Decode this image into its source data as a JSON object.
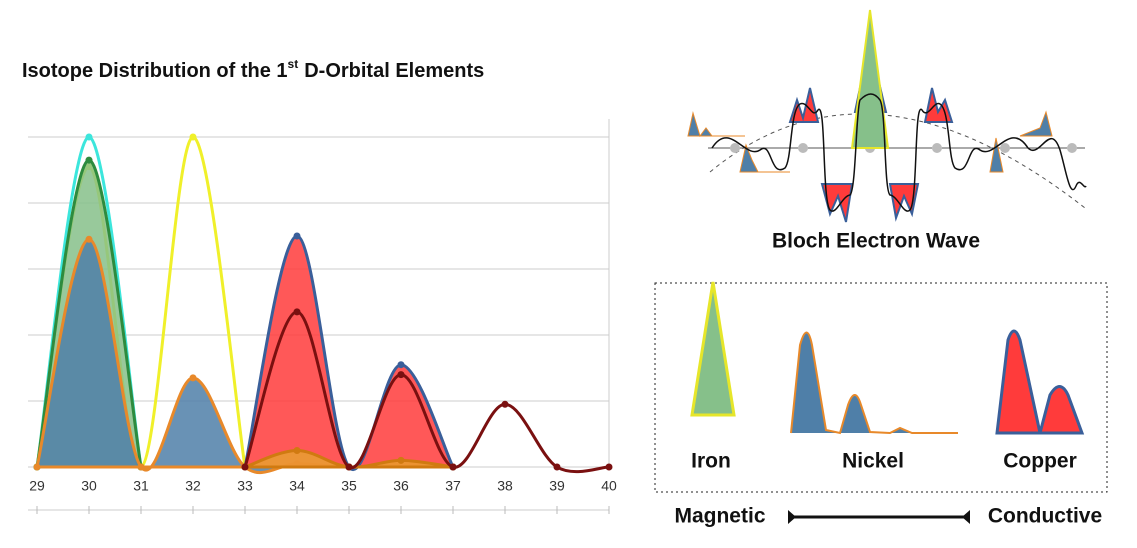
{
  "chart_data": {
    "type": "area",
    "title": "Isotope Distribution of the 1",
    "title_sup": "st",
    "title_rest": "D-Orbital Elements",
    "x": [
      29,
      30,
      31,
      32,
      33,
      34,
      35,
      36,
      37,
      38,
      39,
      40
    ],
    "xlim": [
      29,
      40
    ],
    "xticks": [
      29,
      30,
      31,
      32,
      33,
      34,
      35,
      36,
      37,
      38,
      39,
      40
    ],
    "ylim": [
      0,
      100
    ],
    "yticks": [
      0,
      20,
      40,
      60,
      80,
      100
    ],
    "grid": true,
    "series": [
      {
        "kind": "line",
        "color": "#3ce6dc",
        "values": [
          0,
          100,
          0,
          null,
          null,
          null,
          null,
          null,
          null,
          null,
          null,
          null
        ]
      },
      {
        "kind": "line",
        "color": "#f0f02a",
        "values": [
          0,
          91,
          0,
          100,
          0,
          null,
          null,
          null,
          null,
          null,
          null,
          null
        ]
      },
      {
        "kind": "area",
        "color": "#86c08a",
        "outline": "#2e8b3e",
        "values": [
          0,
          93,
          0,
          null,
          null,
          null,
          null,
          null,
          null,
          null,
          null,
          null
        ]
      },
      {
        "kind": "area",
        "color": "#4f7fa8",
        "outline": "#e8892a",
        "values": [
          0,
          69,
          0,
          27,
          0,
          1,
          0,
          1,
          0,
          null,
          null,
          null
        ]
      },
      {
        "kind": "area",
        "color": "#ff3b3b",
        "outline": "#3a5f9a",
        "values": [
          null,
          null,
          null,
          null,
          0,
          70,
          0,
          31,
          0,
          null,
          null,
          null
        ]
      },
      {
        "kind": "area",
        "color": "#e8a030",
        "outline": "#d07a10",
        "values": [
          null,
          null,
          null,
          null,
          0,
          5,
          0,
          2,
          0,
          null,
          null,
          null
        ]
      },
      {
        "kind": "line",
        "color": "#7a1010",
        "values": [
          null,
          null,
          null,
          null,
          0,
          47,
          0,
          28,
          0,
          19,
          0,
          0
        ]
      }
    ]
  },
  "diagram": {
    "caption": "Bloch Electron Wave"
  },
  "legend": {
    "items": [
      "Iron",
      "Nickel",
      "Copper"
    ]
  },
  "scale": {
    "left": "Magnetic",
    "right": "Conductive"
  }
}
